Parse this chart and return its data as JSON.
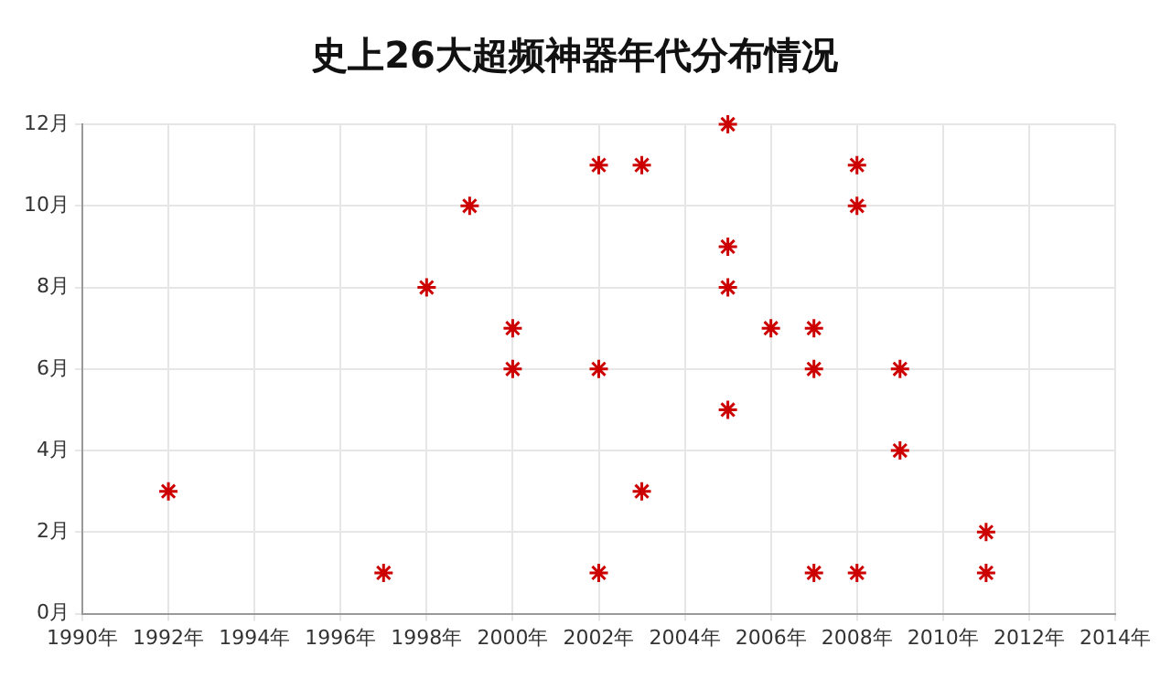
{
  "chart_data": {
    "type": "scatter",
    "title": "史上26大超频神器年代分布情况",
    "x": [
      1992,
      1997,
      1998,
      1999,
      2000,
      2000,
      2002,
      2002,
      2002,
      2003,
      2003,
      2005,
      2005,
      2005,
      2005,
      2006,
      2007,
      2007,
      2007,
      2008,
      2008,
      2008,
      2009,
      2009,
      2011,
      2011
    ],
    "series": [
      {
        "color": "#cc0000",
        "values": [
          3,
          1,
          8,
          10,
          7,
          6,
          11,
          6,
          1,
          11,
          3,
          12,
          9,
          8,
          5,
          7,
          7,
          6,
          1,
          11,
          10,
          1,
          6,
          4,
          2,
          1
        ]
      }
    ],
    "xlim": [
      1990,
      2014
    ],
    "xticks": [
      {
        "value": 1990,
        "label": "1990年"
      },
      {
        "value": 1992,
        "label": "1992年"
      },
      {
        "value": 1994,
        "label": "1994年"
      },
      {
        "value": 1996,
        "label": "1996年"
      },
      {
        "value": 1998,
        "label": "1998年"
      },
      {
        "value": 2000,
        "label": "2000年"
      },
      {
        "value": 2002,
        "label": "2002年"
      },
      {
        "value": 2004,
        "label": "2004年"
      },
      {
        "value": 2006,
        "label": "2006年"
      },
      {
        "value": 2008,
        "label": "2008年"
      },
      {
        "value": 2010,
        "label": "2010年"
      },
      {
        "value": 2012,
        "label": "2012年"
      },
      {
        "value": 2014,
        "label": "2014年"
      }
    ],
    "ylim": [
      0,
      12
    ],
    "yticks": [
      {
        "value": 0,
        "label": "0月"
      },
      {
        "value": 2,
        "label": "2月"
      },
      {
        "value": 4,
        "label": "4月"
      },
      {
        "value": 6,
        "label": "6月"
      },
      {
        "value": 8,
        "label": "8月"
      },
      {
        "value": 10,
        "label": "10月"
      },
      {
        "value": 12,
        "label": "12月"
      }
    ],
    "grid": true,
    "legend": false,
    "marker": "cross"
  }
}
